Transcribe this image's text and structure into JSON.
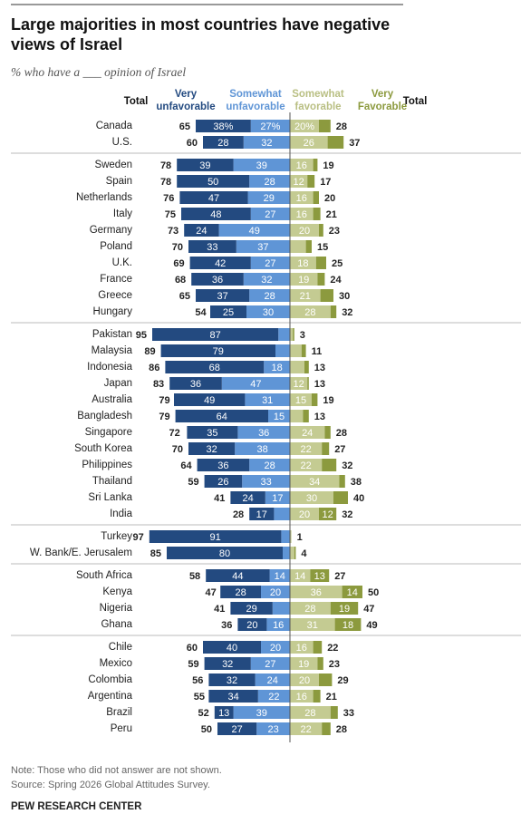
{
  "chart_data": {
    "type": "diverging-bar",
    "title": "Large majorities in most countries have negative views of Israel",
    "subtitle": "% who have a ___ opinion of Israel",
    "note": "Note: Those who did not answer are not shown.",
    "source": "Source: Spring 2026 Global Attitudes Survey.",
    "credit": "PEW RESEARCH CENTER",
    "groups": [
      [
        "Canada",
        "U.S."
      ],
      [
        "Sweden",
        "Spain",
        "Netherlands",
        "Italy",
        "Germany",
        "Poland",
        "U.K.",
        "France",
        "Greece",
        "Hungary"
      ],
      [
        "Pakistan",
        "Malaysia",
        "Indonesia",
        "Japan",
        "Australia",
        "Bangladesh",
        "Singapore",
        "South Korea",
        "Philippines",
        "Thailand",
        "Sri Lanka",
        "India"
      ],
      [
        "Turkey",
        "W. Bank/E. Jerusalem"
      ],
      [
        "South Africa",
        "Kenya",
        "Nigeria",
        "Ghana"
      ],
      [
        "Chile",
        "Mexico",
        "Colombia",
        "Argentina",
        "Brazil",
        "Peru"
      ]
    ],
    "total_unfavorable": {
      "name": "Total",
      "values": [
        [
          65,
          60
        ],
        [
          78,
          78,
          76,
          75,
          73,
          70,
          69,
          68,
          65,
          54
        ],
        [
          95,
          89,
          86,
          83,
          79,
          79,
          72,
          70,
          64,
          59,
          41,
          28
        ],
        [
          97,
          85
        ],
        [
          58,
          47,
          41,
          36
        ],
        [
          60,
          59,
          56,
          55,
          52,
          50
        ]
      ]
    },
    "total_favorable": {
      "name": "Total",
      "values": [
        [
          28,
          37
        ],
        [
          19,
          17,
          20,
          21,
          23,
          15,
          25,
          24,
          30,
          32
        ],
        [
          3,
          11,
          13,
          13,
          19,
          13,
          28,
          27,
          32,
          38,
          40,
          32
        ],
        [
          1,
          4
        ],
        [
          27,
          50,
          47,
          49
        ],
        [
          22,
          23,
          29,
          21,
          33,
          28
        ]
      ]
    },
    "series": [
      {
        "name": "Very unfavorable",
        "color": "#234a80",
        "side": "left",
        "values": [
          [
            38,
            28
          ],
          [
            39,
            50,
            47,
            48,
            24,
            33,
            42,
            36,
            37,
            25
          ],
          [
            87,
            79,
            68,
            36,
            49,
            64,
            35,
            32,
            36,
            26,
            24,
            17
          ],
          [
            91,
            80
          ],
          [
            44,
            28,
            29,
            20
          ],
          [
            40,
            32,
            32,
            34,
            13,
            27
          ]
        ],
        "value_labels": [
          [
            "38%",
            "28"
          ],
          [
            "39",
            "50",
            "47",
            "48",
            "24",
            "33",
            "42",
            "36",
            "37",
            "25"
          ],
          [
            "87",
            "79",
            "68",
            "36",
            "49",
            "64",
            "35",
            "32",
            "36",
            "26",
            "24",
            "17"
          ],
          [
            "91",
            "80"
          ],
          [
            "44",
            "28",
            "29",
            "20"
          ],
          [
            "40",
            "32",
            "32",
            "34",
            "13",
            "27"
          ]
        ]
      },
      {
        "name": "Somewhat unfavorable",
        "color": "#5f95d6",
        "side": "left",
        "values": [
          [
            27,
            32
          ],
          [
            39,
            28,
            29,
            27,
            49,
            37,
            27,
            32,
            28,
            30
          ],
          [
            8,
            10,
            18,
            47,
            31,
            15,
            36,
            38,
            28,
            33,
            17,
            11
          ],
          [
            6,
            5
          ],
          [
            14,
            20,
            12,
            16
          ],
          [
            20,
            27,
            24,
            22,
            39,
            23
          ]
        ],
        "value_labels": [
          [
            "27%",
            "32"
          ],
          [
            "39",
            "28",
            "29",
            "27",
            "49",
            "37",
            "27",
            "32",
            "28",
            "30"
          ],
          [
            null,
            null,
            "18",
            "47",
            "31",
            "15",
            "36",
            "38",
            "28",
            "33",
            "17",
            null
          ],
          [
            null,
            null
          ],
          [
            "14",
            "20",
            null,
            "16"
          ],
          [
            "20",
            "27",
            "24",
            "22",
            "39",
            "23"
          ]
        ]
      },
      {
        "name": "Somewhat favorable",
        "color": "#c4cb92",
        "side": "right",
        "values": [
          [
            20,
            26
          ],
          [
            16,
            12,
            16,
            16,
            20,
            11,
            18,
            19,
            21,
            28
          ],
          [
            2,
            8,
            10,
            12,
            15,
            9,
            24,
            22,
            22,
            34,
            30,
            20
          ],
          [
            1,
            3
          ],
          [
            14,
            36,
            28,
            31
          ],
          [
            16,
            19,
            20,
            16,
            28,
            22
          ]
        ],
        "value_labels": [
          [
            "20%",
            "26"
          ],
          [
            "16",
            "12",
            "16",
            "16",
            "20",
            null,
            "18",
            "19",
            "21",
            "28"
          ],
          [
            null,
            null,
            null,
            "12",
            "15",
            null,
            "24",
            "22",
            "22",
            "34",
            "30",
            "20"
          ],
          [
            null,
            null
          ],
          [
            "14",
            "36",
            "28",
            "31"
          ],
          [
            "16",
            "19",
            "20",
            "16",
            "28",
            "22"
          ]
        ]
      },
      {
        "name": "Very Favorable",
        "color": "#8c9a3e",
        "side": "right",
        "values": [
          [
            8,
            11
          ],
          [
            3,
            5,
            4,
            5,
            3,
            4,
            7,
            5,
            9,
            4
          ],
          [
            1,
            3,
            3,
            1,
            4,
            4,
            4,
            5,
            10,
            4,
            10,
            12
          ],
          [
            0,
            1
          ],
          [
            13,
            14,
            19,
            18
          ],
          [
            6,
            4,
            9,
            5,
            5,
            6
          ]
        ],
        "value_labels": [
          [
            null,
            null
          ],
          [
            null,
            null,
            null,
            null,
            null,
            null,
            null,
            null,
            null,
            null
          ],
          [
            null,
            null,
            null,
            null,
            null,
            null,
            null,
            null,
            null,
            null,
            null,
            "12"
          ],
          [
            null,
            null
          ],
          [
            "13",
            "14",
            "19",
            "18"
          ],
          [
            null,
            null,
            null,
            null,
            null,
            null
          ]
        ]
      }
    ]
  }
}
